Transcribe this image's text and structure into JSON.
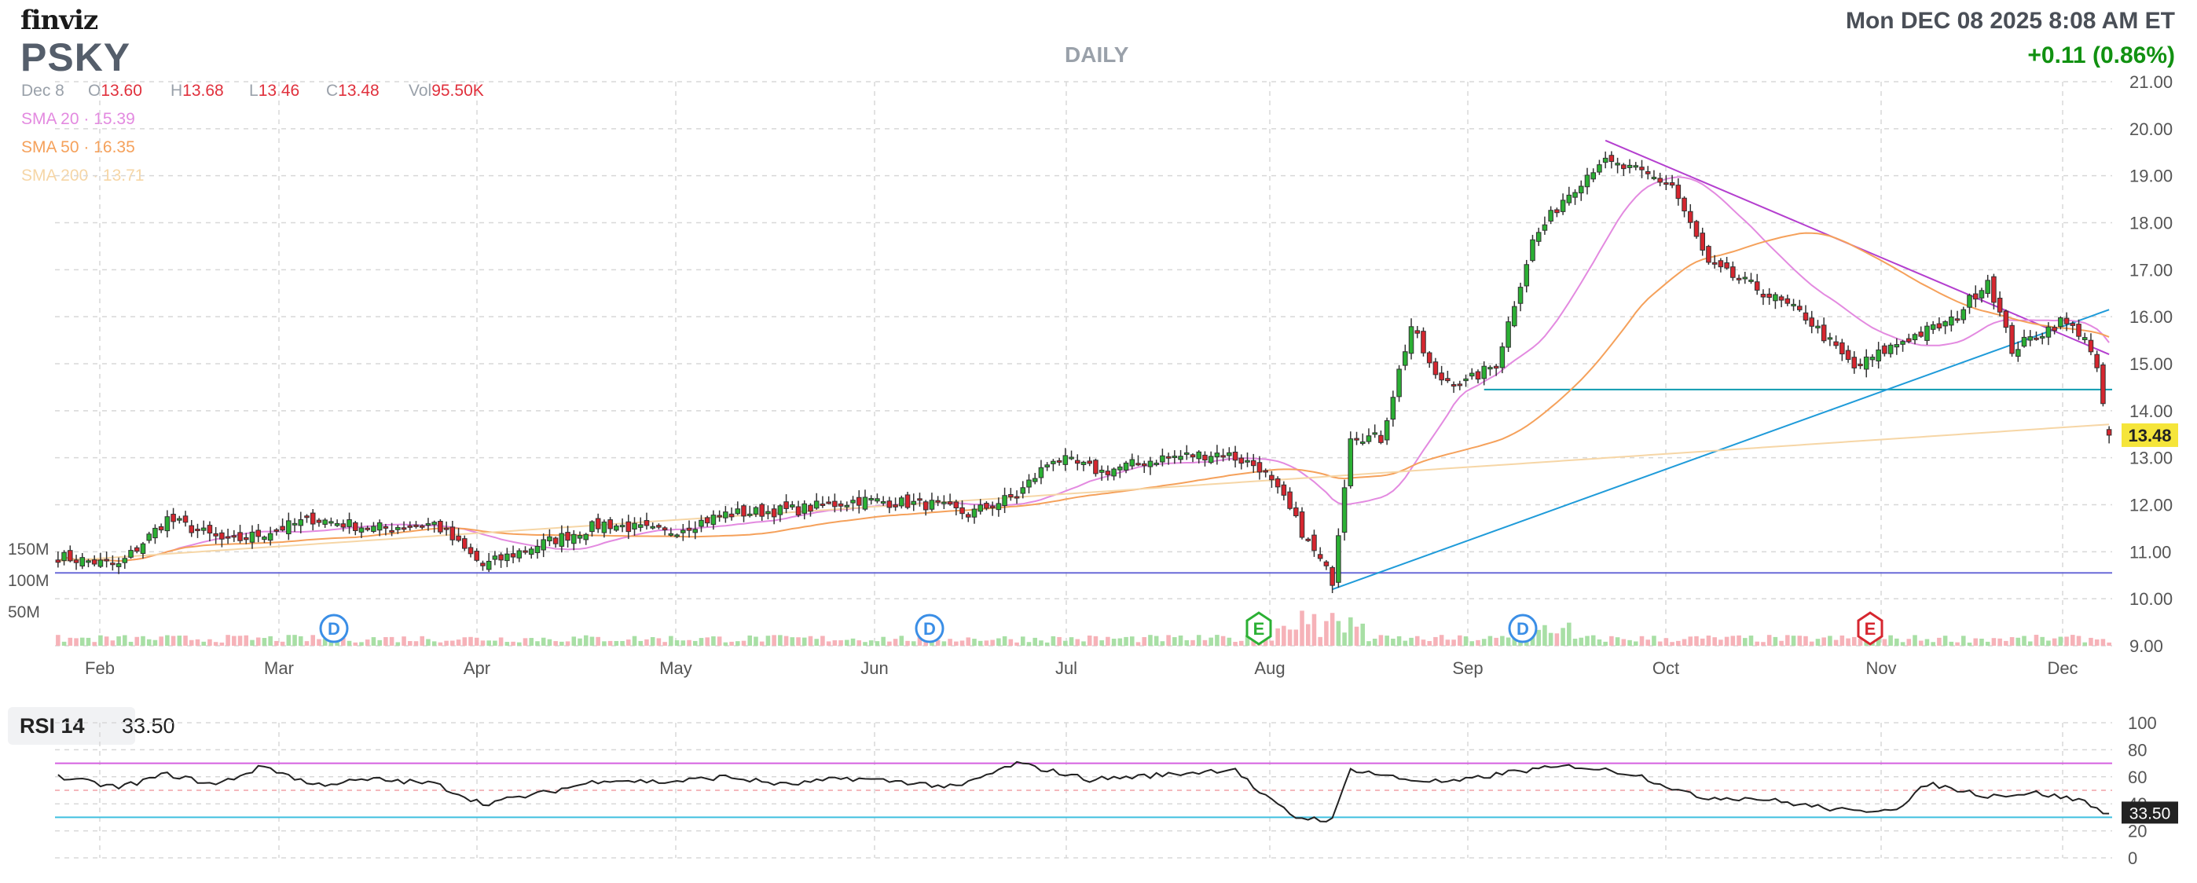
{
  "header": {
    "logo": "finviz",
    "ticker": "PSKY",
    "period": "DAILY",
    "datetime": "Mon DEC 08 2025 8:08 AM ET",
    "change": "+0.11 (0.86%)"
  },
  "ohlc": {
    "date": "Dec 8",
    "o_label": "O",
    "o": "13.60",
    "h_label": "H",
    "h": "13.68",
    "l_label": "L",
    "l": "13.46",
    "c_label": "C",
    "c": "13.48",
    "vol_label": "Vol",
    "vol": "95.50K"
  },
  "sma": [
    {
      "label": "SMA 20",
      "value": "15.39",
      "color": "#e38ae0"
    },
    {
      "label": "SMA 50",
      "value": "16.35",
      "color": "#f5a15b"
    },
    {
      "label": "SMA 200",
      "value": "13.71",
      "color": "#f6d6a6"
    }
  ],
  "rsi": {
    "label": "RSI 14",
    "value": "33.50",
    "ticks": [
      "100",
      "80",
      "60",
      "40",
      "20",
      "0"
    ]
  },
  "colors": {
    "up": "#2bb034",
    "down": "#d6262f",
    "vol_up": "#a8dfa5",
    "vol_down": "#f6b2b8",
    "grid": "#d8d8d8",
    "trend_blue": "#1f9bd9",
    "support_teal": "#0f9bb0",
    "support_purple": "#6a6ad8",
    "resist_magenta": "#b43fcf",
    "rsi_line": "#222222",
    "rsi_70": "#d560e0",
    "rsi_30": "#40c0e0"
  },
  "markers": [
    {
      "label": "D",
      "kind": "dividend",
      "x_month": "Mar",
      "color": "#3a8ee6"
    },
    {
      "label": "D",
      "kind": "dividend",
      "x_month": "Jun",
      "color": "#3a8ee6"
    },
    {
      "label": "E",
      "kind": "earnings",
      "x_month": "Aug",
      "color": "#2bb034"
    },
    {
      "label": "D",
      "kind": "dividend",
      "x_month": "Sep",
      "color": "#3a8ee6"
    },
    {
      "label": "E",
      "kind": "earnings",
      "x_month": "Nov",
      "color": "#d6262f"
    }
  ],
  "chart_data": {
    "type": "candlestick",
    "price_axis": {
      "min": 9,
      "max": 21,
      "ticks": [
        "21.00",
        "20.00",
        "19.00",
        "18.00",
        "17.00",
        "16.00",
        "15.00",
        "14.00",
        "13.00",
        "12.00",
        "11.00",
        "10.00",
        "9.00"
      ]
    },
    "last_price_label": "13.48",
    "last_rsi_label": "33.50",
    "volume_axis": {
      "ticks": [
        "150M",
        "100M",
        "50M"
      ]
    },
    "x_labels": [
      "Feb",
      "Mar",
      "Apr",
      "May",
      "Jun",
      "Jul",
      "Aug",
      "Sep",
      "Oct",
      "Nov",
      "Dec"
    ],
    "grid": true,
    "price_knots": [
      [
        0,
        10.9
      ],
      [
        10,
        10.7
      ],
      [
        18,
        11.7
      ],
      [
        28,
        11.2
      ],
      [
        34,
        11.4
      ],
      [
        42,
        11.7
      ],
      [
        52,
        11.5
      ],
      [
        62,
        11.6
      ],
      [
        70,
        10.7
      ],
      [
        78,
        11.1
      ],
      [
        90,
        11.6
      ],
      [
        100,
        11.4
      ],
      [
        110,
        11.8
      ],
      [
        122,
        11.9
      ],
      [
        132,
        12.1
      ],
      [
        144,
        12.0
      ],
      [
        150,
        11.8
      ],
      [
        158,
        12.2
      ],
      [
        164,
        13.0
      ],
      [
        172,
        12.7
      ],
      [
        182,
        13.0
      ],
      [
        192,
        13.1
      ],
      [
        198,
        12.8
      ],
      [
        202,
        12.1
      ],
      [
        206,
        11.2
      ],
      [
        210,
        10.4
      ],
      [
        213,
        13.5
      ],
      [
        218,
        13.4
      ],
      [
        223,
        15.8
      ],
      [
        227,
        14.7
      ],
      [
        232,
        14.6
      ],
      [
        237,
        15.0
      ],
      [
        243,
        17.6
      ],
      [
        248,
        18.5
      ],
      [
        254,
        19.3
      ],
      [
        260,
        19.1
      ],
      [
        266,
        18.8
      ],
      [
        272,
        17.1
      ],
      [
        280,
        16.6
      ],
      [
        288,
        16.0
      ],
      [
        296,
        14.9
      ],
      [
        304,
        15.5
      ],
      [
        312,
        15.9
      ],
      [
        318,
        16.8
      ],
      [
        322,
        15.3
      ],
      [
        330,
        15.9
      ],
      [
        334,
        15.6
      ],
      [
        336,
        14.8
      ],
      [
        338,
        13.48
      ]
    ],
    "rsi_knots": [
      [
        0,
        60
      ],
      [
        10,
        52
      ],
      [
        18,
        62
      ],
      [
        26,
        54
      ],
      [
        34,
        68
      ],
      [
        42,
        54
      ],
      [
        52,
        58
      ],
      [
        62,
        55
      ],
      [
        70,
        40
      ],
      [
        80,
        48
      ],
      [
        90,
        58
      ],
      [
        100,
        56
      ],
      [
        110,
        60
      ],
      [
        120,
        54
      ],
      [
        130,
        59
      ],
      [
        140,
        56
      ],
      [
        148,
        52
      ],
      [
        158,
        70
      ],
      [
        170,
        58
      ],
      [
        184,
        62
      ],
      [
        194,
        66
      ],
      [
        198,
        48
      ],
      [
        204,
        30
      ],
      [
        210,
        28
      ],
      [
        213,
        66
      ],
      [
        222,
        58
      ],
      [
        230,
        56
      ],
      [
        240,
        64
      ],
      [
        250,
        68
      ],
      [
        260,
        62
      ],
      [
        270,
        45
      ],
      [
        280,
        44
      ],
      [
        296,
        34
      ],
      [
        304,
        38
      ],
      [
        308,
        55
      ],
      [
        318,
        46
      ],
      [
        326,
        48
      ],
      [
        334,
        42
      ],
      [
        336,
        36
      ],
      [
        338,
        33.5
      ]
    ],
    "indicators": [
      "SMA 20",
      "SMA 50",
      "SMA 200",
      "RSI 14"
    ]
  }
}
